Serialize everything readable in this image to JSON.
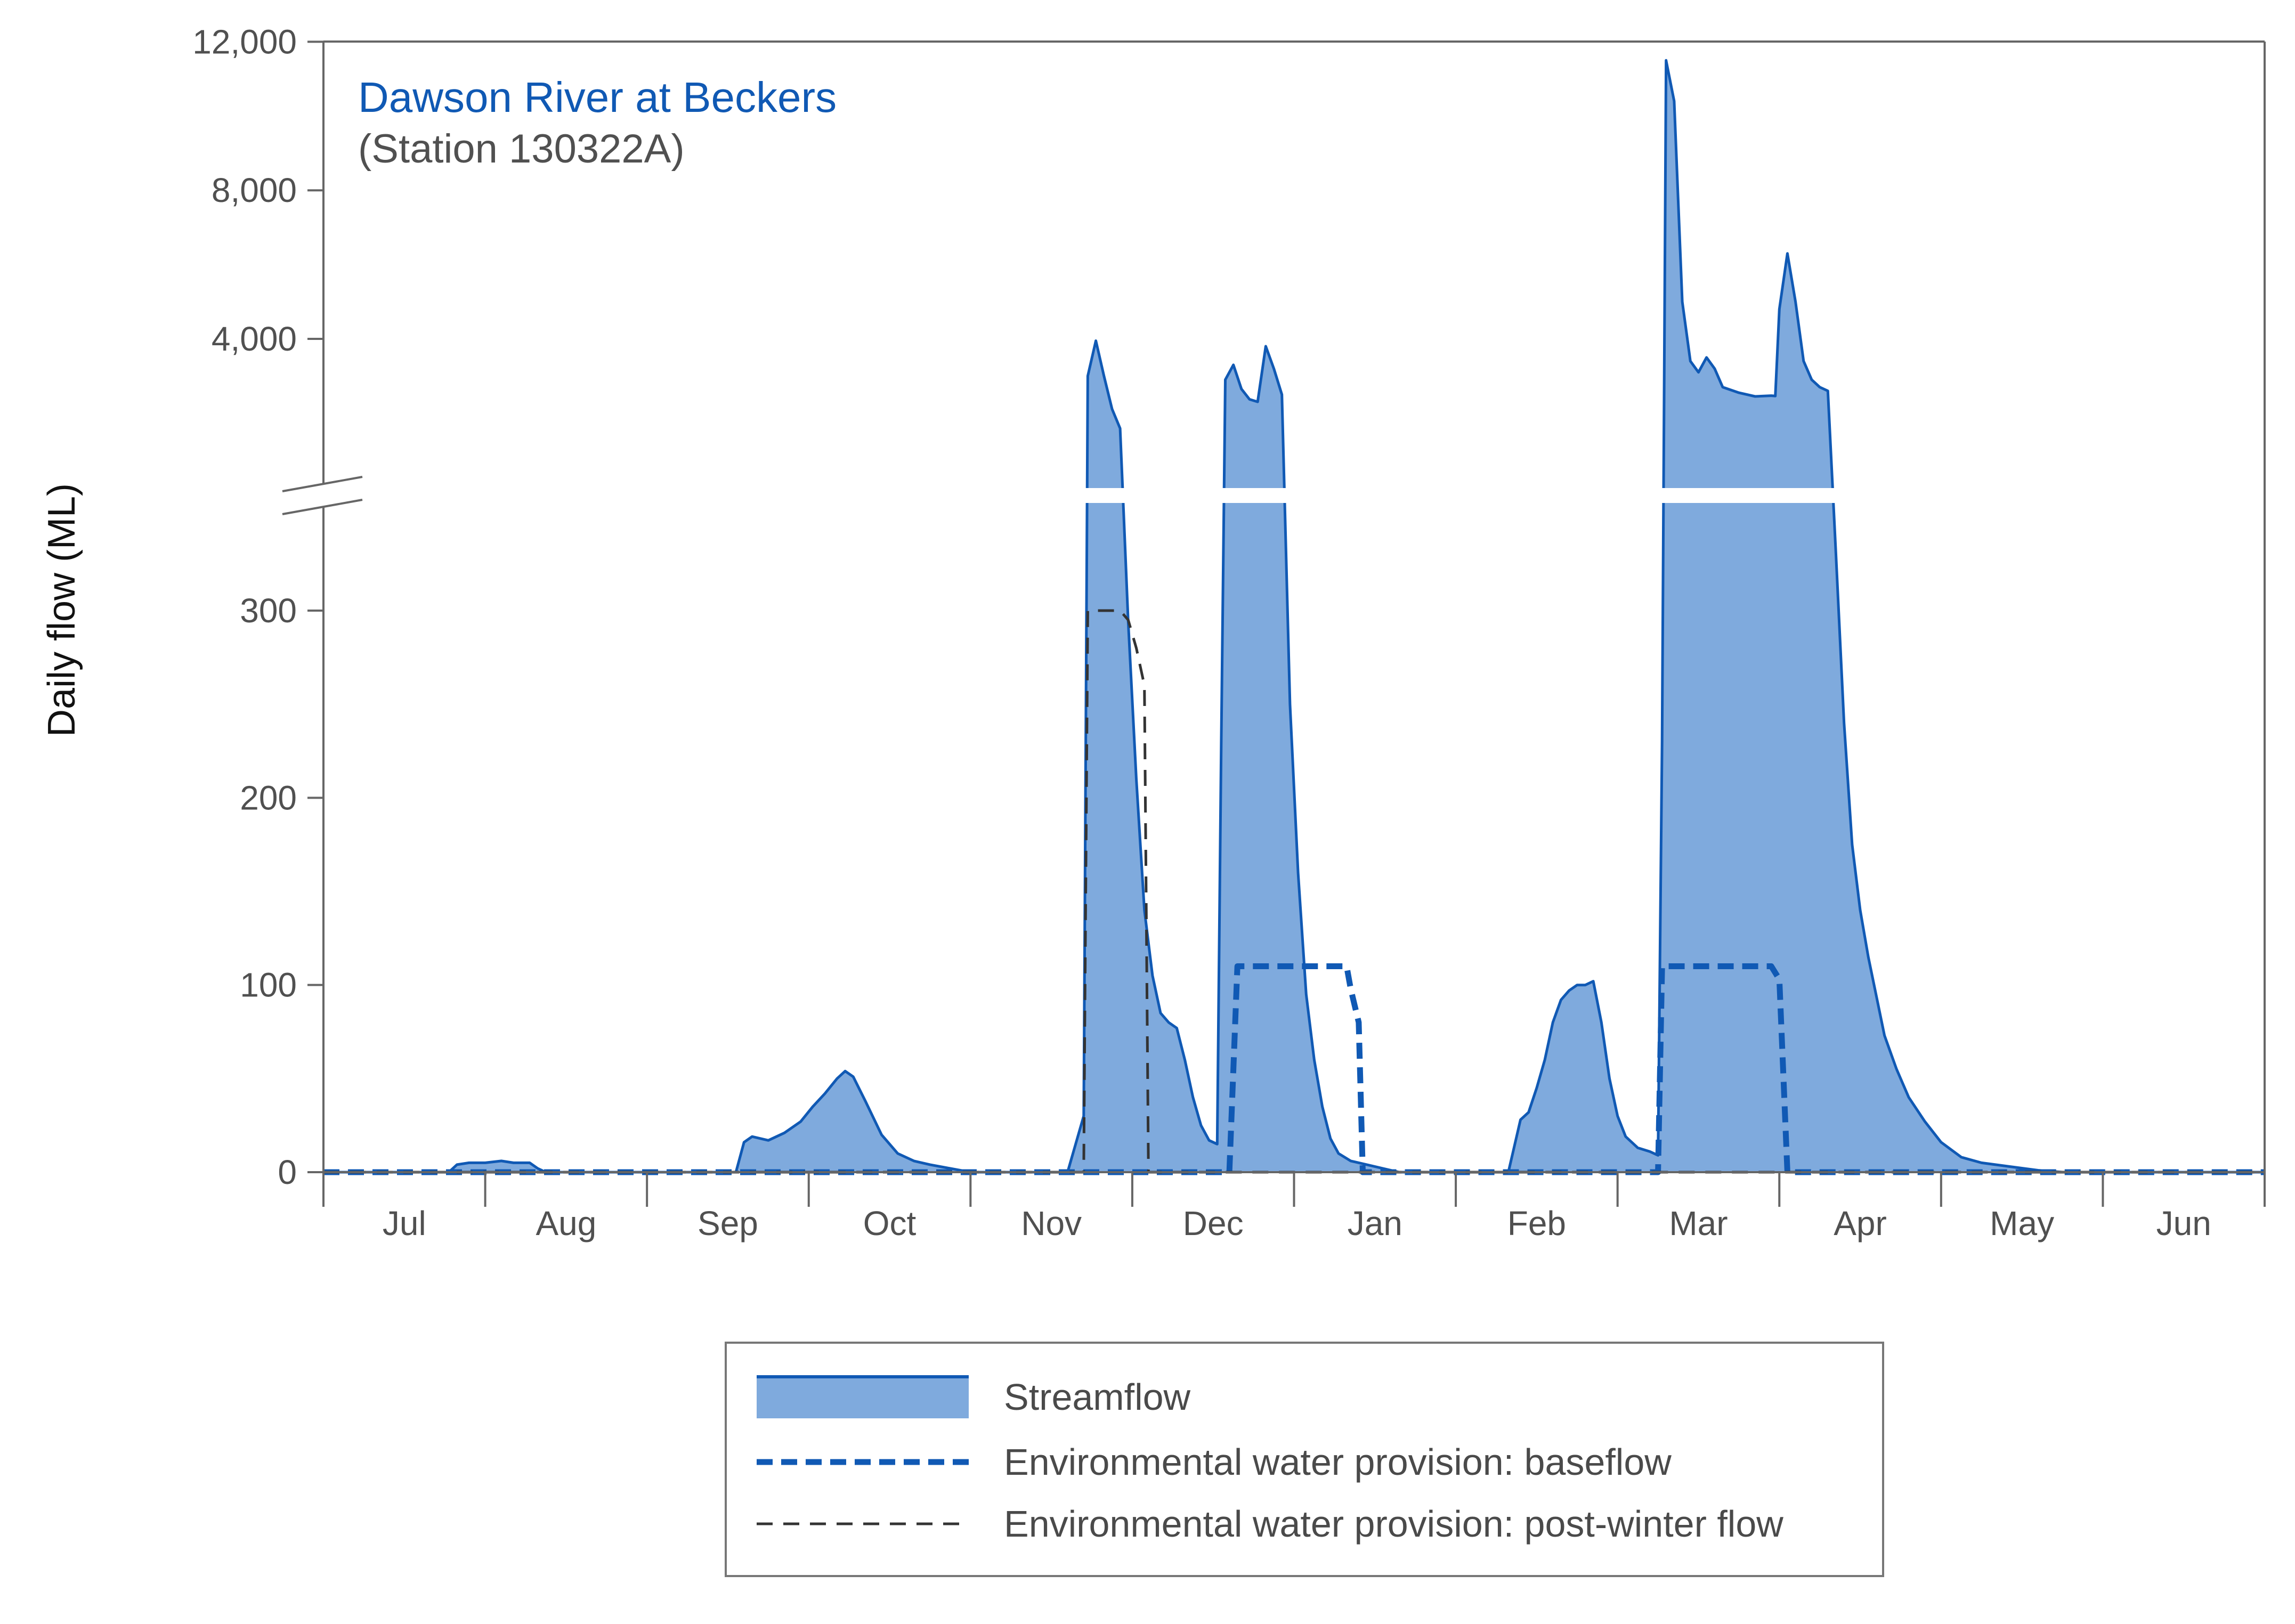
{
  "chart_data": {
    "type": "area",
    "title": "Dawson River at Beckers",
    "subtitle": "(Station 130322A)",
    "xlabel": "",
    "ylabel": "Daily flow (ML)",
    "x_unit": "day of water year (1 = 1 Jul)",
    "y_scale": "broken axis: linear 0–300 below the break, compressed 4,000–12,000 above",
    "y_ticks_lower": [
      0,
      100,
      200,
      300
    ],
    "y_ticks_upper": [
      4000,
      8000,
      12000
    ],
    "y_tick_labels": [
      "0",
      "100",
      "200",
      "300",
      "4,000",
      "8,000",
      "12,000"
    ],
    "months": [
      "Jul",
      "Aug",
      "Sep",
      "Oct",
      "Nov",
      "Dec",
      "Jan",
      "Feb",
      "Mar",
      "Apr",
      "May",
      "Jun"
    ],
    "grid": false,
    "legend_position": "bottom-center",
    "colors": {
      "streamflow_fill": "#7faadd",
      "streamflow_line": "#1059b4",
      "baseflow": "#1059b4",
      "post_winter": "#333333"
    },
    "series": [
      {
        "name": "Streamflow",
        "style": "filled area",
        "points": [
          [
            0,
            0
          ],
          [
            31,
            0
          ],
          [
            33,
            4
          ],
          [
            36,
            5
          ],
          [
            40,
            5
          ],
          [
            44,
            6
          ],
          [
            47,
            5
          ],
          [
            51,
            5
          ],
          [
            53,
            2
          ],
          [
            55,
            0
          ],
          [
            102,
            0
          ],
          [
            104,
            16
          ],
          [
            106,
            19
          ],
          [
            110,
            17
          ],
          [
            114,
            21
          ],
          [
            118,
            27
          ],
          [
            121,
            35
          ],
          [
            124,
            42
          ],
          [
            127,
            50
          ],
          [
            129,
            54
          ],
          [
            131,
            51
          ],
          [
            134,
            38
          ],
          [
            138,
            20
          ],
          [
            142,
            10
          ],
          [
            146,
            6
          ],
          [
            150,
            4
          ],
          [
            155,
            2
          ],
          [
            160,
            0
          ],
          [
            184,
            0
          ],
          [
            188,
            30
          ],
          [
            189,
            3000
          ],
          [
            191,
            3950
          ],
          [
            193,
            3000
          ],
          [
            195,
            2200
          ],
          [
            197,
            1800
          ],
          [
            199,
            294
          ],
          [
            201,
            210
          ],
          [
            203,
            140
          ],
          [
            205,
            105
          ],
          [
            207,
            85
          ],
          [
            209,
            80
          ],
          [
            211,
            77
          ],
          [
            213,
            60
          ],
          [
            215,
            40
          ],
          [
            217,
            25
          ],
          [
            219,
            17
          ],
          [
            221,
            15
          ],
          [
            222,
            230
          ],
          [
            223,
            2900
          ],
          [
            225,
            3300
          ],
          [
            227,
            2650
          ],
          [
            229,
            2400
          ],
          [
            231,
            2350
          ],
          [
            233,
            3800
          ],
          [
            235,
            3200
          ],
          [
            237,
            2500
          ],
          [
            239,
            250
          ],
          [
            241,
            160
          ],
          [
            243,
            95
          ],
          [
            245,
            60
          ],
          [
            247,
            35
          ],
          [
            249,
            18
          ],
          [
            251,
            10
          ],
          [
            254,
            6
          ],
          [
            258,
            4
          ],
          [
            262,
            2
          ],
          [
            266,
            0
          ],
          [
            293,
            0
          ],
          [
            296,
            28
          ],
          [
            298,
            32
          ],
          [
            300,
            45
          ],
          [
            302,
            60
          ],
          [
            304,
            80
          ],
          [
            306,
            92
          ],
          [
            308,
            97
          ],
          [
            310,
            100
          ],
          [
            312,
            100
          ],
          [
            314,
            102
          ],
          [
            316,
            80
          ],
          [
            318,
            50
          ],
          [
            320,
            30
          ],
          [
            322,
            19
          ],
          [
            325,
            13
          ],
          [
            328,
            11
          ],
          [
            330,
            9
          ],
          [
            331,
            230
          ],
          [
            332,
            11500
          ],
          [
            334,
            10400
          ],
          [
            336,
            5000
          ],
          [
            338,
            3400
          ],
          [
            340,
            3100
          ],
          [
            342,
            3500
          ],
          [
            344,
            3200
          ],
          [
            346,
            2700
          ],
          [
            350,
            2550
          ],
          [
            354,
            2450
          ],
          [
            358,
            2470
          ],
          [
            359,
            2460
          ],
          [
            360,
            4800
          ],
          [
            362,
            6300
          ],
          [
            364,
            5000
          ],
          [
            366,
            3400
          ],
          [
            368,
            2900
          ],
          [
            370,
            2700
          ],
          [
            372,
            2600
          ],
          [
            374,
            330
          ],
          [
            376,
            240
          ],
          [
            378,
            175
          ],
          [
            380,
            140
          ],
          [
            382,
            115
          ],
          [
            384,
            94
          ],
          [
            386,
            73
          ],
          [
            389,
            55
          ],
          [
            392,
            40
          ],
          [
            396,
            27
          ],
          [
            400,
            16
          ],
          [
            405,
            8
          ],
          [
            410,
            5
          ],
          [
            417,
            3
          ],
          [
            424,
            1
          ],
          [
            430,
            0
          ],
          [
            480,
            0
          ]
        ]
      },
      {
        "name": "Environmental water provision: baseflow",
        "style": "thick dashed line",
        "points": [
          [
            0,
            0
          ],
          [
            224,
            0
          ],
          [
            226,
            110
          ],
          [
            253,
            110
          ],
          [
            254,
            98
          ],
          [
            256,
            80
          ],
          [
            257,
            0
          ],
          [
            330,
            0
          ],
          [
            331,
            110
          ],
          [
            358,
            110
          ],
          [
            360,
            103
          ],
          [
            362,
            0
          ],
          [
            480,
            0
          ]
        ]
      },
      {
        "name": "Environmental water provision: post-winter flow",
        "style": "thin dashed line",
        "points": [
          [
            0,
            0
          ],
          [
            188,
            0
          ],
          [
            189,
            300
          ],
          [
            197,
            300
          ],
          [
            199,
            295
          ],
          [
            201,
            280
          ],
          [
            203,
            260
          ],
          [
            204,
            0
          ],
          [
            480,
            0
          ]
        ]
      }
    ],
    "legend": [
      "Streamflow",
      "Environmental water provision: baseflow",
      "Environmental water provision: post-winter flow"
    ]
  }
}
